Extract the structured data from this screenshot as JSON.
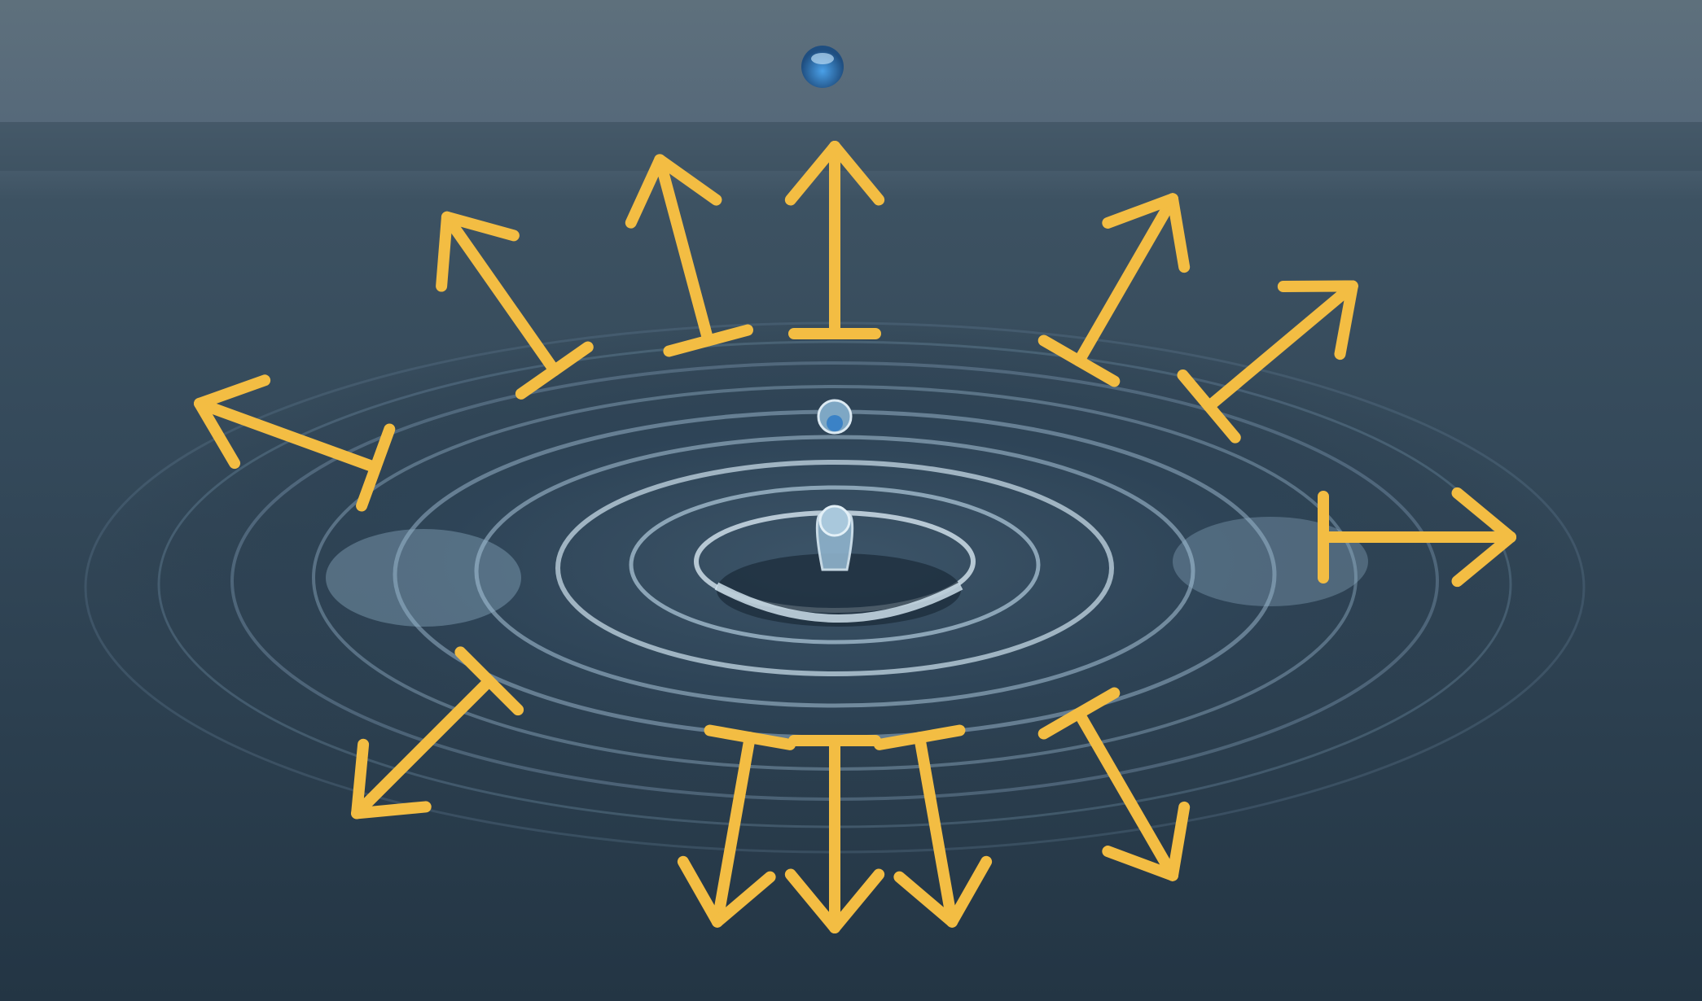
{
  "scene": {
    "subject": "water-drop-ripple",
    "colors": {
      "sky_top": "#5b6d7a",
      "sky_mid": "#3f5464",
      "water_far": "#2f4353",
      "water_near": "#243746",
      "highlight": "#cfe2ee",
      "drop_blue": "#2f78c0",
      "arrow": "#f3bd43"
    }
  },
  "arrows": [
    {
      "name": "arrow-up",
      "angle_deg": -90
    },
    {
      "name": "arrow-up-right",
      "angle_deg": -60
    },
    {
      "name": "arrow-right-up",
      "angle_deg": -40
    },
    {
      "name": "arrow-right",
      "angle_deg": 0
    },
    {
      "name": "arrow-right-down",
      "angle_deg": 60
    },
    {
      "name": "arrow-down-right",
      "angle_deg": 80
    },
    {
      "name": "arrow-down",
      "angle_deg": 90
    },
    {
      "name": "arrow-down-left",
      "angle_deg": 100
    },
    {
      "name": "arrow-left-down",
      "angle_deg": 135
    },
    {
      "name": "arrow-left",
      "angle_deg": 200
    },
    {
      "name": "arrow-left-up",
      "angle_deg": 235
    },
    {
      "name": "arrow-up-left",
      "angle_deg": 255
    }
  ]
}
